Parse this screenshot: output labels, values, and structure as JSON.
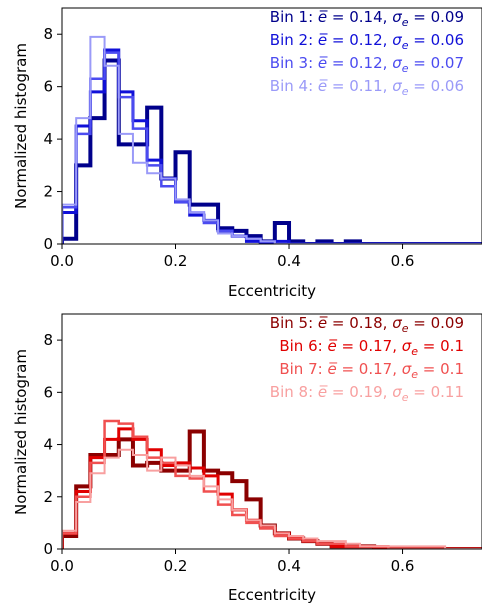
{
  "chart_data": [
    {
      "type": "histogram-step",
      "xlabel": "Eccentricity",
      "ylabel": "Normalized histogram",
      "xlim": [
        0,
        0.74
      ],
      "ylim": [
        0,
        9
      ],
      "xticks": [
        "0.0",
        "0.2",
        "0.4",
        "0.6"
      ],
      "xtick_values": [
        0,
        0.2,
        0.4,
        0.6
      ],
      "yticks": [
        "0",
        "2",
        "4",
        "6",
        "8"
      ],
      "ytick_values": [
        0,
        2,
        4,
        6,
        8
      ],
      "bin_width": 0.025,
      "legend_position": "top-right",
      "series": [
        {
          "name": "Bin 1",
          "label_prefix": "Bin 1: ",
          "mean_text": "0.14",
          "sigma_text": "0.09",
          "color": "#00008b",
          "values": [
            0.2,
            3.0,
            4.8,
            7.0,
            3.8,
            3.8,
            5.2,
            2.5,
            3.5,
            1.5,
            1.5,
            0.6,
            0.5,
            0.3,
            0.1,
            0.8,
            0.1,
            0.0,
            0.1,
            0.0,
            0.1,
            0.0,
            0.0,
            0.0,
            0.0,
            0.0,
            0.0,
            0.0,
            0.0,
            0.0
          ]
        },
        {
          "name": "Bin 2",
          "label_prefix": "Bin 2: ",
          "mean_text": "0.12",
          "sigma_text": "0.06",
          "color": "#1010d8",
          "values": [
            1.2,
            4.5,
            5.8,
            7.4,
            5.8,
            4.7,
            3.2,
            2.5,
            1.6,
            1.1,
            0.9,
            0.5,
            0.3,
            0.1,
            0.0,
            0.1,
            0.0,
            0.0,
            0.0,
            0.0,
            0.0,
            0.0,
            0.0,
            0.0,
            0.0,
            0.0,
            0.0,
            0.0,
            0.0,
            0.0
          ]
        },
        {
          "name": "Bin 3",
          "label_prefix": "Bin 3: ",
          "mean_text": "0.12",
          "sigma_text": "0.07",
          "color": "#4b4bf0",
          "values": [
            1.4,
            4.2,
            6.3,
            7.3,
            5.6,
            4.4,
            3.0,
            2.2,
            1.6,
            1.2,
            0.8,
            0.5,
            0.3,
            0.2,
            0.1,
            0.0,
            0.0,
            0.0,
            0.0,
            0.0,
            0.0,
            0.0,
            0.0,
            0.0,
            0.0,
            0.0,
            0.0,
            0.0,
            0.0,
            0.0
          ]
        },
        {
          "name": "Bin 4",
          "label_prefix": "Bin 4: ",
          "mean_text": "0.11",
          "sigma_text": "0.06",
          "color": "#9a9af8",
          "values": [
            1.5,
            4.8,
            7.9,
            6.8,
            4.2,
            3.1,
            2.7,
            2.5,
            1.7,
            1.2,
            0.9,
            0.4,
            0.3,
            0.2,
            0.1,
            0.0,
            0.0,
            0.0,
            0.0,
            0.0,
            0.0,
            0.0,
            0.0,
            0.0,
            0.0,
            0.0,
            0.0,
            0.0,
            0.0,
            0.0
          ]
        }
      ]
    },
    {
      "type": "histogram-step",
      "xlabel": "Eccentricity",
      "ylabel": "Normalized histogram",
      "xlim": [
        0,
        0.74
      ],
      "ylim": [
        0,
        9
      ],
      "xticks": [
        "0.0",
        "0.2",
        "0.4",
        "0.6"
      ],
      "xtick_values": [
        0,
        0.2,
        0.4,
        0.6
      ],
      "yticks": [
        "0",
        "2",
        "4",
        "6",
        "8"
      ],
      "ytick_values": [
        0,
        2,
        4,
        6,
        8
      ],
      "bin_width": 0.025,
      "legend_position": "top-right",
      "series": [
        {
          "name": "Bin 5",
          "label_prefix": "Bin 5: ",
          "mean_text": "0.18",
          "sigma_text": "0.09",
          "color": "#8b0000",
          "values": [
            0.5,
            2.4,
            3.6,
            3.6,
            4.2,
            3.2,
            3.3,
            3.0,
            3.0,
            4.5,
            3.0,
            2.9,
            2.6,
            1.9,
            0.9,
            0.6,
            0.4,
            0.3,
            0.2,
            0.1,
            0.1,
            0.1,
            0.0,
            0.0,
            0.0,
            0.0,
            0.0,
            0.0,
            0.0,
            0.0
          ]
        },
        {
          "name": "Bin 6",
          "label_prefix": "Bin 6: ",
          "mean_text": "0.17",
          "sigma_text": "0.1",
          "color": "#e00000",
          "values": [
            0.6,
            2.2,
            3.5,
            4.2,
            4.6,
            4.2,
            3.8,
            3.2,
            3.3,
            3.1,
            2.8,
            2.1,
            1.5,
            1.1,
            0.8,
            0.6,
            0.4,
            0.3,
            0.2,
            0.1,
            0.1,
            0.1,
            0.0,
            0.0,
            0.0,
            0.0,
            0.0,
            0.0,
            0.0,
            0.0
          ]
        },
        {
          "name": "Bin 7",
          "label_prefix": "Bin 7: ",
          "mean_text": "0.17",
          "sigma_text": "0.1",
          "color": "#f05050",
          "values": [
            0.6,
            2.0,
            3.3,
            4.9,
            4.8,
            4.3,
            3.5,
            3.3,
            2.8,
            2.7,
            2.2,
            1.7,
            1.3,
            1.0,
            0.8,
            0.5,
            0.4,
            0.3,
            0.2,
            0.2,
            0.1,
            0.1,
            0.1,
            0.0,
            0.0,
            0.0,
            0.0,
            0.0,
            0.0,
            0.0
          ]
        },
        {
          "name": "Bin 8",
          "label_prefix": "Bin 8: ",
          "mean_text": "0.19",
          "sigma_text": "0.11",
          "color": "#f8a0a0",
          "values": [
            0.7,
            1.8,
            2.9,
            3.5,
            3.8,
            3.6,
            3.0,
            3.5,
            3.2,
            2.8,
            2.4,
            1.9,
            1.5,
            1.1,
            0.9,
            0.6,
            0.5,
            0.4,
            0.3,
            0.3,
            0.2,
            0.1,
            0.1,
            0.1,
            0.1,
            0.1,
            0.1,
            0.0,
            0.0,
            0.0
          ]
        }
      ]
    }
  ]
}
